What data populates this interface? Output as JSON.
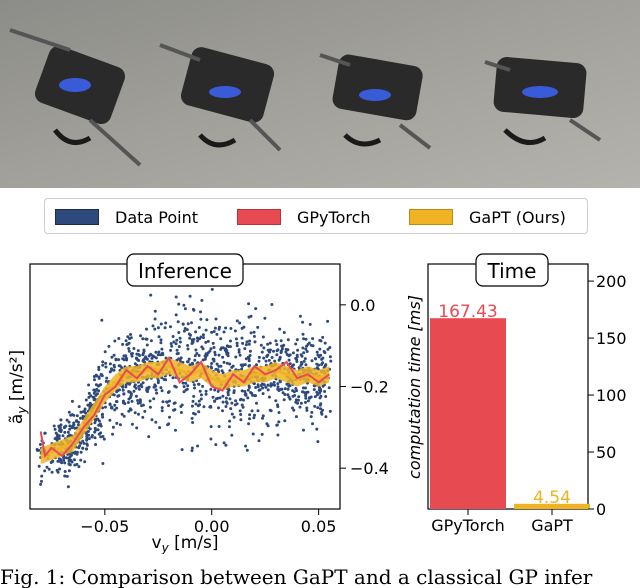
{
  "photo": {
    "description_icon": "drone-sequence-photo"
  },
  "legend": {
    "items": [
      {
        "label": "Data Point",
        "color": "#2e4a7d"
      },
      {
        "label": "GPyTorch",
        "color": "#e84a52"
      },
      {
        "label": "GaPT (Ours)",
        "color": "#f0b323"
      }
    ]
  },
  "chart_data": [
    {
      "type": "scatter",
      "title": "Inference",
      "xlabel": "v_y [m/s]",
      "ylabel": "ã_y [m/s²]",
      "xlim": [
        -0.085,
        0.06
      ],
      "ylim": [
        -0.5,
        0.1
      ],
      "xticks": [
        "−0.05",
        "0.00",
        "0.05"
      ],
      "xtick_values": [
        -0.05,
        0.0,
        0.05
      ],
      "yticks": [
        "0.0",
        "−0.2",
        "−0.4"
      ],
      "ytick_values": [
        0.0,
        -0.2,
        -0.4
      ],
      "yaxis_side": "right",
      "series": [
        {
          "name": "GPyTorch",
          "x": [
            -0.08,
            -0.078,
            -0.075,
            -0.07,
            -0.065,
            -0.06,
            -0.055,
            -0.05,
            -0.045,
            -0.04,
            -0.035,
            -0.03,
            -0.025,
            -0.02,
            -0.015,
            -0.01,
            -0.005,
            0.0,
            0.005,
            0.01,
            0.015,
            0.02,
            0.025,
            0.03,
            0.035,
            0.04,
            0.045,
            0.05,
            0.055
          ],
          "y": [
            -0.31,
            -0.37,
            -0.35,
            -0.37,
            -0.34,
            -0.3,
            -0.27,
            -0.22,
            -0.2,
            -0.16,
            -0.18,
            -0.15,
            -0.17,
            -0.13,
            -0.19,
            -0.17,
            -0.14,
            -0.2,
            -0.21,
            -0.17,
            -0.19,
            -0.15,
            -0.17,
            -0.16,
            -0.14,
            -0.18,
            -0.17,
            -0.19,
            -0.17
          ]
        },
        {
          "name": "GaPT (Ours)",
          "x": [
            -0.08,
            -0.075,
            -0.07,
            -0.065,
            -0.06,
            -0.055,
            -0.05,
            -0.045,
            -0.04,
            -0.035,
            -0.03,
            -0.025,
            -0.02,
            -0.015,
            -0.01,
            -0.005,
            0.0,
            0.005,
            0.01,
            0.015,
            0.02,
            0.025,
            0.03,
            0.035,
            0.04,
            0.045,
            0.05,
            0.055
          ],
          "y": [
            -0.37,
            -0.36,
            -0.35,
            -0.34,
            -0.3,
            -0.26,
            -0.22,
            -0.19,
            -0.17,
            -0.17,
            -0.16,
            -0.16,
            -0.15,
            -0.16,
            -0.17,
            -0.16,
            -0.18,
            -0.19,
            -0.18,
            -0.18,
            -0.17,
            -0.17,
            -0.16,
            -0.17,
            -0.18,
            -0.17,
            -0.18,
            -0.17
          ]
        }
      ]
    },
    {
      "type": "bar",
      "title": "Time",
      "ylabel": "computation time [ms]",
      "categories": [
        "GPyTorch",
        "GaPT"
      ],
      "values": [
        167.43,
        4.54
      ],
      "value_labels": [
        "167.43",
        "4.54"
      ],
      "colors": [
        "#e84a52",
        "#f0b323"
      ],
      "ylim": [
        0,
        215
      ],
      "yticks": [
        "0",
        "50",
        "100",
        "150",
        "200"
      ],
      "ytick_values": [
        0,
        50,
        100,
        150,
        200
      ],
      "yaxis_side": "right"
    }
  ],
  "caption": "Fig. 1: Comparison between GaPT and a classical GP infer"
}
